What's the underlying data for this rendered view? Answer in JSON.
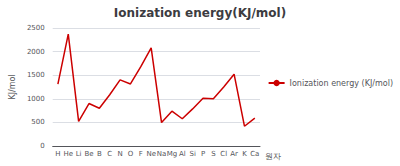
{
  "chart_data": {
    "type": "line",
    "title": "Ionization energy(KJ/mol)",
    "ylabel": "KJ/mol",
    "xlabel": "원자",
    "categories": [
      "H",
      "He",
      "Li",
      "Be",
      "B",
      "C",
      "N",
      "O",
      "F",
      "Ne",
      "Na",
      "Mg",
      "Al",
      "Si",
      "P",
      "S",
      "Cl",
      "Ar",
      "K",
      "Ca"
    ],
    "series": [
      {
        "name": "Ionization energy (KJ/mol)",
        "color": "#cc0000",
        "values": [
          1312,
          2372,
          520,
          900,
          800,
          1086,
          1402,
          1314,
          1681,
          2081,
          496,
          738,
          577,
          786,
          1012,
          1000,
          1251,
          1521,
          419,
          590
        ]
      }
    ],
    "ylim": [
      0,
      2500
    ],
    "yticks": [
      0,
      500,
      1000,
      1500,
      2000,
      2500
    ],
    "grid": true,
    "legend": "right"
  }
}
